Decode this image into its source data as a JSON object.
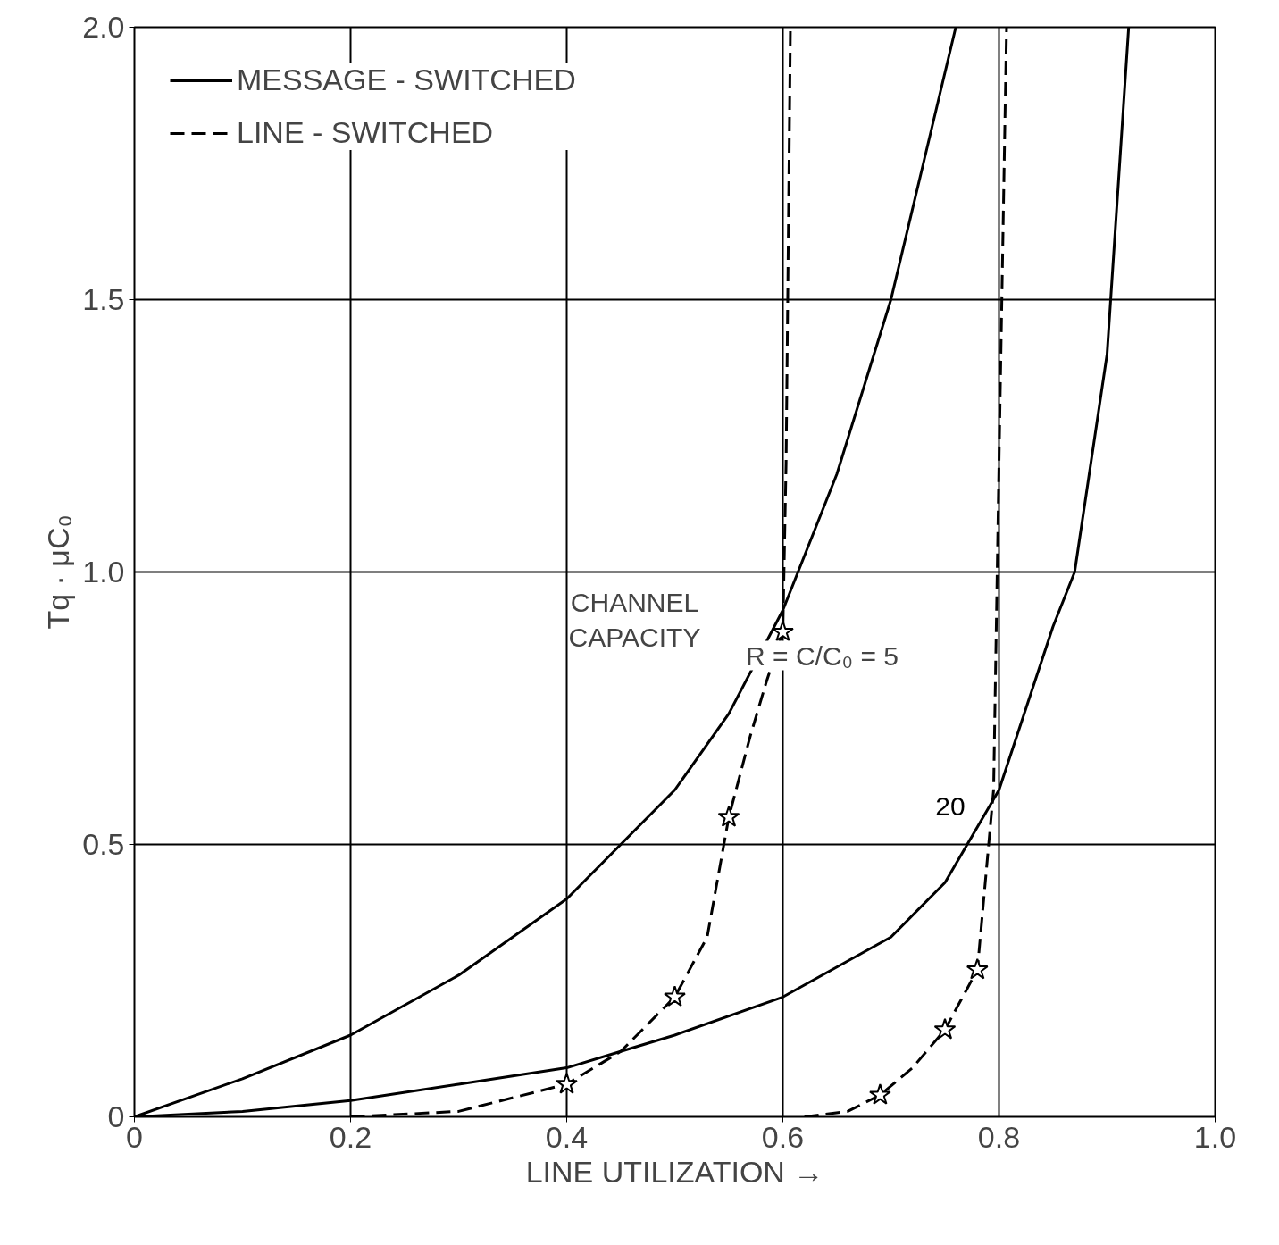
{
  "chart_data": {
    "type": "line",
    "xlabel": "LINE UTILIZATION →",
    "ylabel": "Tq · μC₀",
    "xlim": [
      0,
      1
    ],
    "ylim": [
      0,
      2
    ],
    "xticks": [
      0,
      0.2,
      0.4,
      0.6,
      0.8,
      {
        "value": 1,
        "label": "1.0"
      }
    ],
    "yticks": [
      0,
      0.5,
      {
        "value": 1,
        "label": "1.0"
      },
      1.5,
      {
        "value": 2,
        "label": "2.0"
      }
    ],
    "grid": true,
    "legend": "top left",
    "series": [
      {
        "name": "MESSAGE - SWITCHED",
        "color": "#000000",
        "line_style": "solid",
        "x": [
          0,
          0.1,
          0.2,
          0.3,
          0.4,
          0.5,
          0.55,
          0.6,
          0.65,
          0.7,
          0.73,
          0.76
        ],
        "values": [
          0,
          0.07,
          0.15,
          0.26,
          0.4,
          0.6,
          0.74,
          0.93,
          1.18,
          1.5,
          1.75,
          2.0
        ]
      },
      {
        "color": "#000000",
        "line_style": "solid",
        "x": [
          0,
          0.1,
          0.2,
          0.3,
          0.4,
          0.45,
          0.5,
          0.6,
          0.7,
          0.75,
          0.8,
          0.85,
          0.87,
          0.9,
          0.92
        ],
        "values": [
          0,
          0.01,
          0.03,
          0.06,
          0.09,
          0.12,
          0.15,
          0.22,
          0.33,
          0.43,
          0.6,
          0.9,
          1.0,
          1.4,
          2.0
        ]
      },
      {
        "name": "LINE - SWITCHED",
        "color": "#000000",
        "line_style": "dashed",
        "x": [
          0.2,
          0.3,
          0.4,
          0.45,
          0.5,
          0.53,
          0.55,
          0.57,
          0.585,
          0.6,
          0.603,
          0.607
        ],
        "values": [
          0,
          0.01,
          0.06,
          0.12,
          0.22,
          0.33,
          0.55,
          0.7,
          0.8,
          0.89,
          1.2,
          2.0
        ]
      },
      {
        "color": "#000000",
        "line_style": "dashed",
        "x": [
          0.62,
          0.66,
          0.69,
          0.72,
          0.75,
          0.78,
          0.795,
          0.8,
          0.807
        ],
        "values": [
          0,
          0.01,
          0.04,
          0.09,
          0.16,
          0.27,
          0.6,
          1.2,
          2.0
        ]
      },
      {
        "type": "scatter",
        "marker": "star",
        "color": "#000000",
        "x": [
          0.4,
          0.5,
          0.55,
          0.6,
          0.69,
          0.75,
          0.78
        ],
        "values": [
          0.06,
          0.22,
          0.55,
          0.89,
          0.04,
          0.16,
          0.27
        ]
      }
    ],
    "annotations": [
      "CHANNEL\nCAPACITY",
      "R = C/C₀ = 5",
      {
        "text": "20",
        "x": 0.755,
        "y": 0.57
      }
    ]
  }
}
